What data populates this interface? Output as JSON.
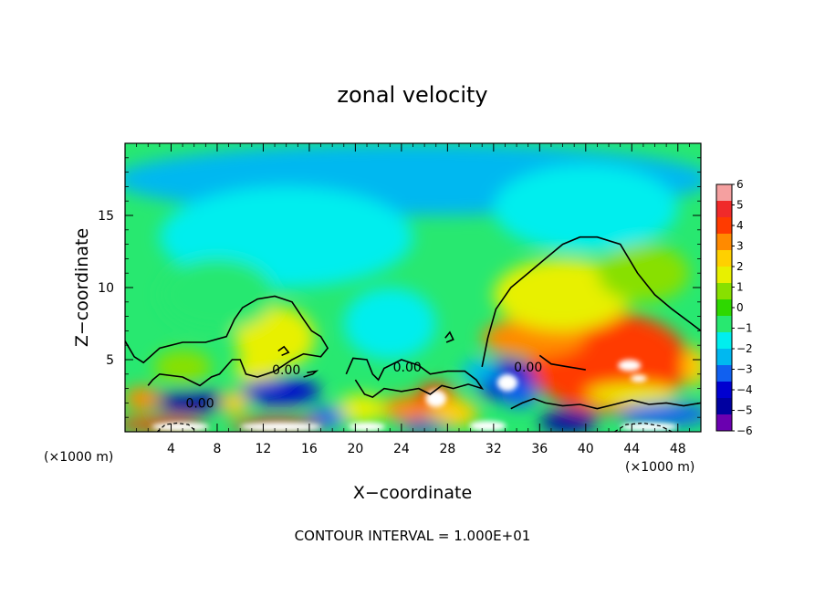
{
  "chart_data": {
    "type": "heatmap",
    "title": "zonal velocity",
    "xlabel": "X−coordinate",
    "ylabel": "Z−coordinate",
    "x_unit": "(×1000 m)",
    "z_unit": "(×1000 m)",
    "xlim": [
      0,
      50
    ],
    "ylim": [
      0,
      20
    ],
    "x_ticks": [
      4,
      8,
      12,
      16,
      20,
      24,
      28,
      32,
      36,
      40,
      44,
      48
    ],
    "x_tick_labels": [
      "4",
      "8",
      "12",
      "16",
      "20",
      "24",
      "28",
      "32",
      "36",
      "40",
      "44",
      "48"
    ],
    "y_ticks": [
      5,
      10,
      15
    ],
    "y_tick_labels": [
      "5",
      "10",
      "15"
    ],
    "contour_labels": [
      {
        "text": "0.00",
        "x": 6.5,
        "z": 2.0
      },
      {
        "text": "0.00",
        "x": 14.0,
        "z": 4.3
      },
      {
        "text": "0.00",
        "x": 24.5,
        "z": 4.5
      },
      {
        "text": "0.00",
        "x": 35.0,
        "z": 4.5
      }
    ],
    "zero_contours": [
      [
        [
          0,
          6.3
        ],
        [
          0.8,
          5.2
        ],
        [
          1.6,
          4.8
        ],
        [
          3,
          5.8
        ],
        [
          5,
          6.2
        ],
        [
          7,
          6.2
        ],
        [
          8.8,
          6.6
        ],
        [
          9.5,
          7.8
        ],
        [
          10.2,
          8.6
        ],
        [
          11.5,
          9.2
        ],
        [
          13,
          9.4
        ],
        [
          14.5,
          9.0
        ],
        [
          15.5,
          7.8
        ],
        [
          16.2,
          7.0
        ],
        [
          17,
          6.6
        ],
        [
          17.6,
          5.8
        ],
        [
          17,
          5.2
        ],
        [
          15.5,
          5.4
        ],
        [
          14.5,
          5.0
        ],
        [
          13,
          4.2
        ],
        [
          11.5,
          3.8
        ],
        [
          10.5,
          4.0
        ],
        [
          10,
          5.0
        ],
        [
          9.3,
          5.0
        ],
        [
          8.2,
          4.0
        ],
        [
          7.5,
          3.8
        ],
        [
          6.5,
          3.2
        ],
        [
          5,
          3.8
        ],
        [
          3,
          4.0
        ],
        [
          2.4,
          3.6
        ],
        [
          2.0,
          3.2
        ]
      ],
      [
        [
          19.2,
          4.0
        ],
        [
          19.8,
          5.1
        ],
        [
          21.0,
          5.0
        ],
        [
          21.5,
          4.0
        ],
        [
          22.0,
          3.6
        ],
        [
          22.5,
          4.4
        ],
        [
          24.0,
          5.0
        ],
        [
          25.5,
          4.6
        ],
        [
          26.5,
          4.0
        ],
        [
          28.0,
          4.2
        ],
        [
          29.5,
          4.2
        ],
        [
          30.5,
          3.6
        ],
        [
          31.0,
          3.0
        ],
        [
          29.8,
          3.3
        ],
        [
          28.5,
          3.0
        ],
        [
          27.5,
          3.2
        ],
        [
          26.5,
          2.6
        ],
        [
          25.5,
          3.0
        ],
        [
          24.0,
          2.8
        ],
        [
          22.5,
          3.0
        ],
        [
          21.5,
          2.4
        ],
        [
          20.8,
          2.6
        ],
        [
          20.0,
          3.6
        ]
      ],
      [
        [
          31.0,
          4.5
        ],
        [
          31.5,
          6.5
        ],
        [
          32.2,
          8.5
        ],
        [
          33.5,
          10.0
        ],
        [
          35.0,
          11.0
        ],
        [
          36.5,
          12.0
        ],
        [
          38.0,
          13.0
        ],
        [
          39.5,
          13.5
        ],
        [
          41.0,
          13.5
        ],
        [
          43.0,
          13.0
        ],
        [
          44.5,
          11.0
        ],
        [
          46.0,
          9.5
        ],
        [
          47.5,
          8.5
        ],
        [
          49.0,
          7.6
        ],
        [
          50.0,
          7.0
        ]
      ],
      [
        [
          36.0,
          5.3
        ],
        [
          37.0,
          4.7
        ],
        [
          38.5,
          4.5
        ],
        [
          40.0,
          4.3
        ]
      ],
      [
        [
          27.8,
          6.5
        ],
        [
          28.2,
          6.9
        ],
        [
          28.5,
          6.4
        ],
        [
          27.9,
          6.2
        ]
      ],
      [
        [
          15.5,
          3.8
        ],
        [
          16.3,
          4.0
        ],
        [
          16.6,
          4.2
        ],
        [
          15.8,
          4.1
        ]
      ],
      [
        [
          13.3,
          5.6
        ],
        [
          13.8,
          5.9
        ],
        [
          14.2,
          5.5
        ],
        [
          13.6,
          5.3
        ]
      ],
      [
        [
          33.5,
          1.6
        ],
        [
          34.5,
          2.0
        ],
        [
          35.5,
          2.3
        ],
        [
          36.5,
          2.0
        ],
        [
          38.0,
          1.8
        ],
        [
          39.5,
          1.9
        ],
        [
          41.0,
          1.6
        ],
        [
          42.5,
          1.9
        ],
        [
          44.0,
          2.2
        ],
        [
          45.5,
          1.9
        ],
        [
          47.0,
          2.0
        ],
        [
          48.5,
          1.8
        ],
        [
          50.0,
          2.0
        ]
      ]
    ],
    "negative_contours": [
      [
        [
          2.8,
          0.0
        ],
        [
          3.5,
          0.5
        ],
        [
          4.5,
          0.6
        ],
        [
          5.5,
          0.5
        ],
        [
          6.2,
          0.0
        ]
      ],
      [
        [
          42.5,
          0.0
        ],
        [
          43.5,
          0.5
        ],
        [
          45.0,
          0.6
        ],
        [
          46.5,
          0.4
        ],
        [
          47.5,
          0.0
        ]
      ]
    ],
    "colorbar": {
      "min": -6,
      "max": 6,
      "labels": [
        "6",
        "5",
        "4",
        "3",
        "2",
        "1",
        "0",
        "−1",
        "−2",
        "−3",
        "−4",
        "−5",
        "−6"
      ],
      "colors": [
        "#f5a0a0",
        "#f02a2a",
        "#ff3b00",
        "#ff8a00",
        "#ffd000",
        "#e8f000",
        "#88e000",
        "#2ed800",
        "#28e870",
        "#00eeee",
        "#00b8f0",
        "#1060f0",
        "#0000d0",
        "#0000a0",
        "#6a00b0"
      ]
    },
    "blobs": [
      {
        "x": 25,
        "z": 17.5,
        "rx": 26,
        "rz": 2.5,
        "v": -2.2
      },
      {
        "x": 14,
        "z": 13.5,
        "rx": 11,
        "rz": 3.5,
        "v": -1.9
      },
      {
        "x": 40,
        "z": 15.5,
        "rx": 8,
        "rz": 3,
        "v": -1.6
      },
      {
        "x": 23,
        "z": 7.5,
        "rx": 4,
        "rz": 2.5,
        "v": -1.2
      },
      {
        "x": 13,
        "z": 6.5,
        "rx": 3.5,
        "rz": 2.2,
        "v": 2.0
      },
      {
        "x": 5,
        "z": 4.5,
        "rx": 2.5,
        "rz": 1.2,
        "v": 1.0
      },
      {
        "x": 11.5,
        "z": 4.3,
        "rx": 2,
        "rz": 1,
        "v": 1.2
      },
      {
        "x": 42,
        "z": 4.8,
        "rx": 7,
        "rz": 3.5,
        "v": 4.0
      },
      {
        "x": 43.5,
        "z": 4.5,
        "rx": 3.0,
        "rz": 1.6,
        "v": 4.0
      },
      {
        "x": 35.5,
        "z": 6.5,
        "rx": 4.5,
        "rz": 1.4,
        "v": 3.3
      },
      {
        "x": 38,
        "z": 9.5,
        "rx": 6,
        "rz": 2.5,
        "v": 1.2
      },
      {
        "x": 33,
        "z": 3.6,
        "rx": 2.6,
        "rz": 1.4,
        "v": -4.2
      },
      {
        "x": 34.2,
        "z": 2.6,
        "rx": 1.6,
        "rz": 0.9,
        "v": -3.5
      },
      {
        "x": 30.8,
        "z": 4.2,
        "rx": 1.6,
        "rz": 0.8,
        "v": -2.0
      },
      {
        "x": 5.8,
        "z": 2.1,
        "rx": 3.6,
        "rz": 0.75,
        "v": -4.5
      },
      {
        "x": 13.5,
        "z": 2.8,
        "rx": 3.5,
        "rz": 0.9,
        "v": -4.2
      },
      {
        "x": 24.5,
        "z": 1.6,
        "rx": 2.2,
        "rz": 0.9,
        "v": 3.2
      },
      {
        "x": 27,
        "z": 2.3,
        "rx": 1.8,
        "rz": 1.1,
        "v": 4.2
      },
      {
        "x": 28.5,
        "z": 1.3,
        "rx": 2.2,
        "rz": 1.0,
        "v": 2.5
      },
      {
        "x": 20.5,
        "z": 1.6,
        "rx": 2.2,
        "rz": 1.0,
        "v": 2.0
      },
      {
        "x": 17.5,
        "z": 1.0,
        "rx": 1.6,
        "rz": 0.7,
        "v": -3.5
      },
      {
        "x": 1.5,
        "z": 2.3,
        "rx": 1.6,
        "rz": 0.8,
        "v": 3.5
      },
      {
        "x": 9.5,
        "z": 2.0,
        "rx": 1.2,
        "rz": 0.8,
        "v": 2.5
      },
      {
        "x": 3,
        "z": 0.5,
        "rx": 4,
        "rz": 0.5,
        "v": 4.0
      },
      {
        "x": 13,
        "z": 0.5,
        "rx": 4,
        "rz": 0.45,
        "v": 4.5
      },
      {
        "x": 26,
        "z": 0.4,
        "rx": 2,
        "rz": 0.4,
        "v": -4.0
      },
      {
        "x": 38.5,
        "z": 0.7,
        "rx": 2.5,
        "rz": 0.8,
        "v": -4.5
      },
      {
        "x": 47,
        "z": 1.2,
        "rx": 4,
        "rz": 0.8,
        "v": -3.5
      },
      {
        "x": 44,
        "z": 2.6,
        "rx": 4,
        "rz": 0.7,
        "v": 2.0
      },
      {
        "x": 49.5,
        "z": 4.5,
        "rx": 1.0,
        "rz": 1.4,
        "v": 2.5
      },
      {
        "x": 45,
        "z": 11,
        "rx": 4,
        "rz": 2.0,
        "v": 0.8
      },
      {
        "x": 8,
        "z": 9.5,
        "rx": 5,
        "rz": 2.5,
        "v": -0.9
      }
    ],
    "saturated_regions": [
      {
        "x": 27,
        "z": 2.3,
        "rx": 0.9,
        "rz": 0.6,
        "color": "#ffffff"
      },
      {
        "x": 33.2,
        "z": 3.4,
        "rx": 0.9,
        "rz": 0.6,
        "color": "#ffffff"
      },
      {
        "x": 43.8,
        "z": 4.6,
        "rx": 1.0,
        "rz": 0.4,
        "color": "#ffffff"
      },
      {
        "x": 44.6,
        "z": 3.7,
        "rx": 0.7,
        "rz": 0.25,
        "color": "#ffffff"
      },
      {
        "x": 4.8,
        "z": 0.35,
        "rx": 2.5,
        "rz": 0.3,
        "color": "#ffffff"
      },
      {
        "x": 13.5,
        "z": 0.35,
        "rx": 3.5,
        "rz": 0.3,
        "color": "#ffffff"
      },
      {
        "x": 31.5,
        "z": 0.4,
        "rx": 1.6,
        "rz": 0.35,
        "color": "#ffffff"
      },
      {
        "x": 45.5,
        "z": 0.35,
        "rx": 2.5,
        "rz": 0.3,
        "color": "#ffffff"
      },
      {
        "x": 21,
        "z": 0.35,
        "rx": 1.6,
        "rz": 0.3,
        "color": "#ffffff"
      }
    ],
    "footer": "CONTOUR INTERVAL =  1.000E+01"
  }
}
